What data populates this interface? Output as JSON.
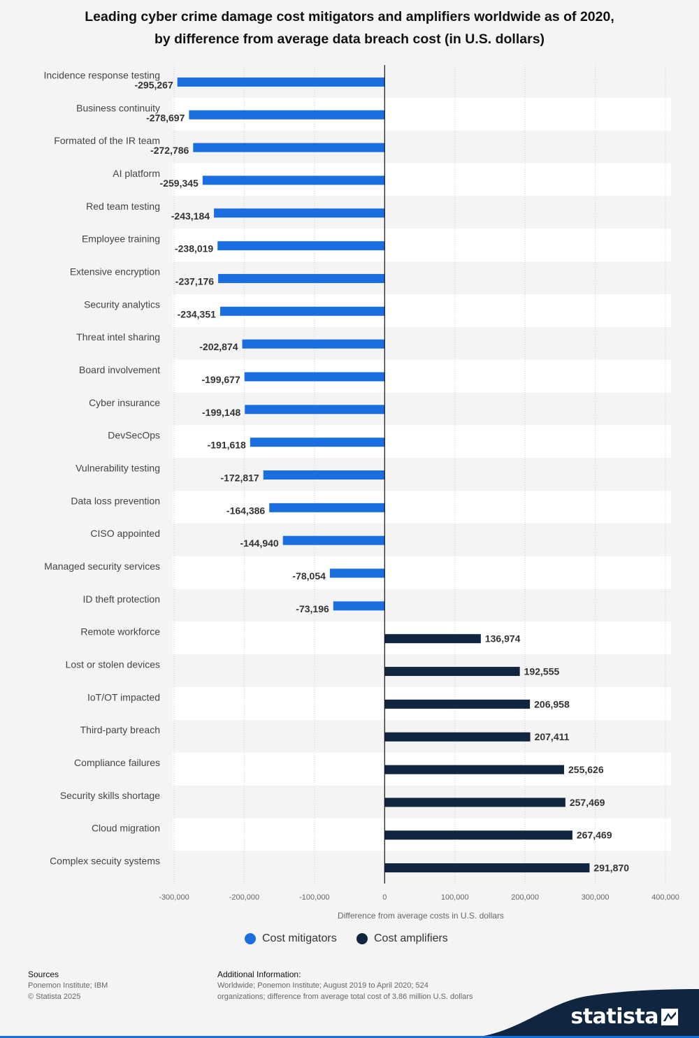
{
  "title_lines": [
    "Leading cyber crime damage cost mitigators and amplifiers worldwide as of 2020,",
    "by difference from average data breach cost (in U.S. dollars)"
  ],
  "chart_data": {
    "type": "bar",
    "orientation": "horizontal",
    "title": "Leading cyber crime damage cost mitigators and amplifiers worldwide as of 2020, by difference from average data breach cost (in U.S. dollars)",
    "xlabel": "Difference from average costs in U.S. dollars",
    "ylabel": "",
    "xlim": [
      -300000,
      400000
    ],
    "xticks": [
      -300000,
      -200000,
      -100000,
      0,
      100000,
      200000,
      300000,
      400000
    ],
    "xtick_labels": [
      "-300,000",
      "-200,000",
      "-100,000",
      "0",
      "100,000",
      "200,000",
      "300,000",
      "400,000"
    ],
    "grid": true,
    "legend_position": "bottom",
    "categories": [
      "Incidence response testing",
      "Business continuity",
      "Formated of the IR team",
      "AI platform",
      "Red team testing",
      "Employee training",
      "Extensive encryption",
      "Security analytics",
      "Threat intel sharing",
      "Board involvement",
      "Cyber insurance",
      "DevSecOps",
      "Vulnerability testing",
      "Data loss prevention",
      "CISO appointed",
      "Managed security services",
      "ID theft protection",
      "Remote workforce",
      "Lost or stolen devices",
      "IoT/OT impacted",
      "Third-party breach",
      "Compliance failures",
      "Security skills shortage",
      "Cloud migration",
      "Complex secuity systems"
    ],
    "values": [
      -295267,
      -278697,
      -272786,
      -259345,
      -243184,
      -238019,
      -237176,
      -234351,
      -202874,
      -199677,
      -199148,
      -191618,
      -172817,
      -164386,
      -144940,
      -78054,
      -73196,
      136974,
      192555,
      206958,
      207411,
      255626,
      257469,
      267469,
      291870
    ],
    "value_labels": [
      "-295,267",
      "-278,697",
      "-272,786",
      "-259,345",
      "-243,184",
      "-238,019",
      "-237,176",
      "-234,351",
      "-202,874",
      "-199,677",
      "-199,148",
      "-191,618",
      "-172,817",
      "-164,386",
      "-144,940",
      "-78,054",
      "-73,196",
      "136,974",
      "192,555",
      "206,958",
      "207,411",
      "255,626",
      "257,469",
      "267,469",
      "291,870"
    ],
    "series": [
      {
        "name": "Cost mitigators",
        "color": "#1a6ee0"
      },
      {
        "name": "Cost amplifiers",
        "color": "#0f2540"
      }
    ],
    "series_membership": [
      "Cost mitigators",
      "Cost mitigators",
      "Cost mitigators",
      "Cost mitigators",
      "Cost mitigators",
      "Cost mitigators",
      "Cost mitigators",
      "Cost mitigators",
      "Cost mitigators",
      "Cost mitigators",
      "Cost mitigators",
      "Cost mitigators",
      "Cost mitigators",
      "Cost mitigators",
      "Cost mitigators",
      "Cost mitigators",
      "Cost mitigators",
      "Cost amplifiers",
      "Cost amplifiers",
      "Cost amplifiers",
      "Cost amplifiers",
      "Cost amplifiers",
      "Cost amplifiers",
      "Cost amplifiers",
      "Cost amplifiers"
    ]
  },
  "footer": {
    "sources_heading": "Sources",
    "sources_line1": "Ponemon Institute; IBM",
    "sources_line2": "© Statista 2025",
    "info_heading": "Additional Information:",
    "info_line1": "Worldwide; Ponemon Institute; August 2019 to April 2020; 524",
    "info_line2": "organizations; difference from average total cost of 3.86 million U.S. dollars"
  },
  "brand": {
    "name": "statista",
    "color": "#0f2540"
  }
}
